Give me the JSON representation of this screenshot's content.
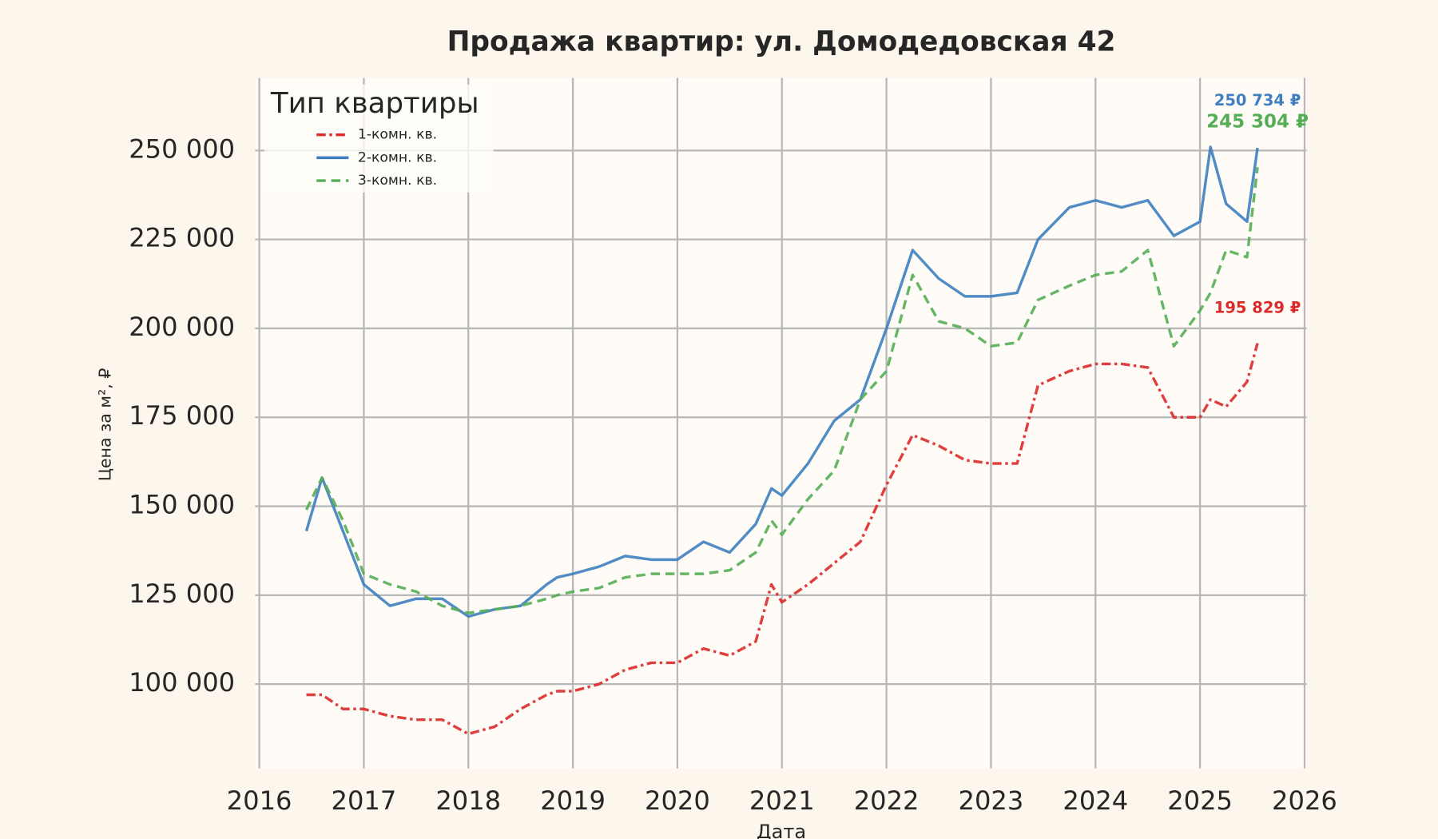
{
  "chart_data": {
    "type": "line",
    "title": "Продажа квартир: ул. Домодедовская 42",
    "x_label": "Дата",
    "y_label": "Цена за м², ₽",
    "legend_title": "Тип квартиры",
    "legend_position": "upper left",
    "grid": true,
    "xlim": [
      2015.96,
      2026.02
    ],
    "xticks": [
      2016,
      2017,
      2018,
      2019,
      2020,
      2021,
      2022,
      2023,
      2024,
      2025,
      2026
    ],
    "ylim": [
      76300,
      270400
    ],
    "yticks": [
      {
        "value": 100000,
        "label": "100 000"
      },
      {
        "value": 125000,
        "label": "125 000"
      },
      {
        "value": 150000,
        "label": "150 000"
      },
      {
        "value": 175000,
        "label": "175 000"
      },
      {
        "value": 200000,
        "label": "200 000"
      },
      {
        "value": 225000,
        "label": "225 000"
      },
      {
        "value": 250000,
        "label": "250 000"
      }
    ],
    "x": [
      2016.45,
      2016.6,
      2016.8,
      2017.0,
      2017.25,
      2017.5,
      2017.75,
      2018.0,
      2018.25,
      2018.5,
      2018.75,
      2018.85,
      2019.0,
      2019.25,
      2019.5,
      2019.75,
      2020.0,
      2020.25,
      2020.5,
      2020.75,
      2020.9,
      2021.0,
      2021.25,
      2021.5,
      2021.75,
      2022.0,
      2022.25,
      2022.5,
      2022.75,
      2023.0,
      2023.25,
      2023.45,
      2023.75,
      2024.0,
      2024.25,
      2024.5,
      2024.75,
      2025.0,
      2025.1,
      2025.25,
      2025.45,
      2025.55
    ],
    "series": [
      {
        "name": "1-комн. кв.",
        "color": "#dc2a2a",
        "dash": "dashdot",
        "end_label": "195 829 ₽",
        "values": [
          97000,
          97000,
          93000,
          93000,
          91000,
          90000,
          90000,
          86000,
          88000,
          93000,
          97000,
          98000,
          98000,
          100000,
          104000,
          106000,
          106000,
          110000,
          108000,
          112000,
          128000,
          123000,
          128000,
          134000,
          140000,
          156000,
          170000,
          167000,
          163000,
          162000,
          162000,
          184000,
          188000,
          190000,
          190000,
          189000,
          175000,
          175000,
          180000,
          178000,
          185000,
          195829
        ]
      },
      {
        "name": "2-комн. кв.",
        "color": "#3f7fbf",
        "dash": "solid",
        "end_label": "250 734 ₽",
        "values": [
          143000,
          158000,
          143000,
          128000,
          122000,
          124000,
          124000,
          119000,
          121000,
          122000,
          128000,
          130000,
          131000,
          133000,
          136000,
          135000,
          135000,
          140000,
          137000,
          145000,
          155000,
          153000,
          162000,
          174000,
          180000,
          200000,
          222000,
          214000,
          209000,
          209000,
          210000,
          225000,
          234000,
          236000,
          234000,
          236000,
          226000,
          230000,
          251000,
          235000,
          230000,
          250734
        ]
      },
      {
        "name": "3-комн. кв.",
        "color": "#55ae55",
        "dash": "dashed",
        "end_label": "245 304 ₽",
        "values": [
          149000,
          158000,
          146000,
          131000,
          128000,
          126000,
          122000,
          120000,
          121000,
          122000,
          124000,
          125000,
          126000,
          127000,
          130000,
          131000,
          131000,
          131000,
          132000,
          137000,
          146000,
          142000,
          152000,
          160000,
          180000,
          188000,
          215000,
          202000,
          200000,
          195000,
          196000,
          208000,
          212000,
          215000,
          216000,
          222000,
          195000,
          205000,
          210000,
          222000,
          220000,
          245304
        ]
      }
    ]
  }
}
